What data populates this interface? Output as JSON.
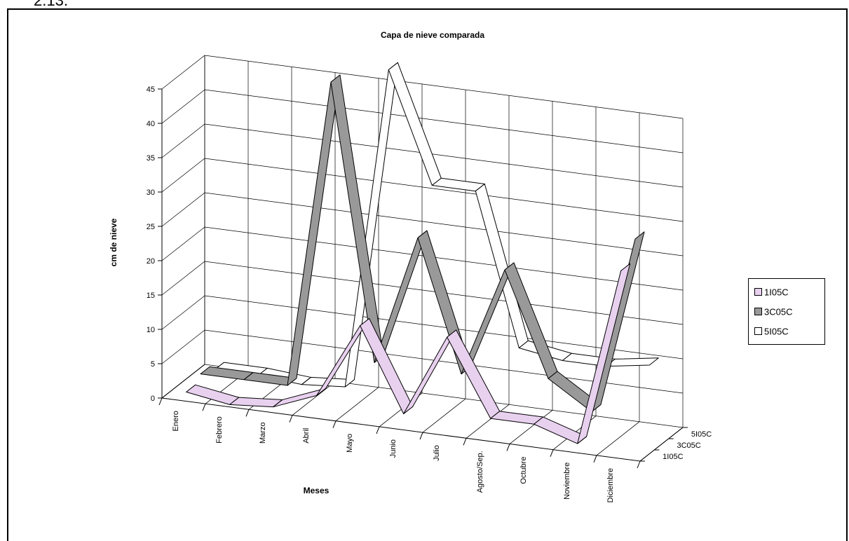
{
  "page": {
    "caption": "2.13."
  },
  "chart_data": {
    "type": "line",
    "title": "Capa de nieve comparada",
    "xlabel": "Meses",
    "ylabel": "cm de nieve",
    "ylim": [
      0,
      45
    ],
    "yticks": [
      "0",
      "5",
      "10",
      "15",
      "20",
      "25",
      "30",
      "35",
      "40",
      "45"
    ],
    "categories": [
      "Enero",
      "Febrero",
      "Marzo",
      "Abril",
      "Mayo",
      "Junio",
      "Julio",
      "Agosto/Sep.",
      "Octubre",
      "Noviembre",
      "Diciembre"
    ],
    "depth_labels": [
      "1I05C",
      "3C05C",
      "5I05C"
    ],
    "grid": true,
    "legend_position": "right",
    "series": [
      {
        "name": "1I05C",
        "color": "#e8d0ef",
        "values": [
          1,
          0,
          0.5,
          3,
          14,
          2,
          14,
          3,
          3,
          1,
          27
        ]
      },
      {
        "name": "3C05C",
        "color": "#999999",
        "values": [
          2,
          2,
          2,
          47,
          7,
          26,
          7,
          23,
          8,
          4,
          30
        ]
      },
      {
        "name": "5I05C",
        "color": "#ffffff",
        "values": [
          1,
          1,
          0.5,
          1,
          48,
          32,
          32,
          10,
          9,
          9,
          10
        ]
      }
    ]
  }
}
